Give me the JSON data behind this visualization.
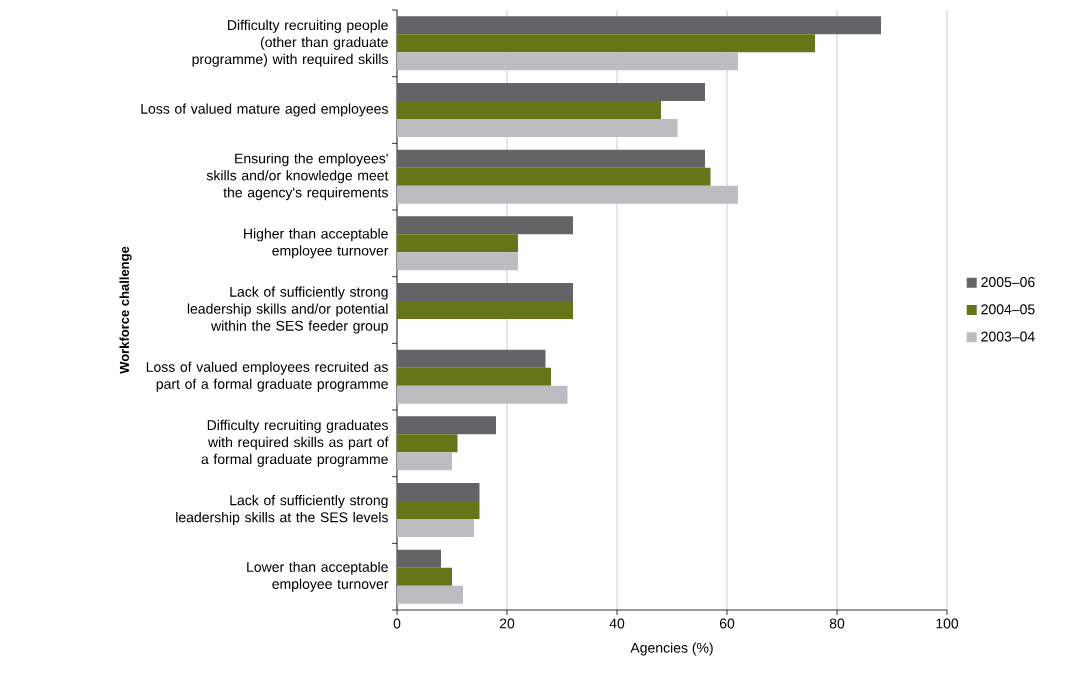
{
  "chart_data": {
    "type": "bar",
    "orientation": "horizontal",
    "xlabel": "Agencies (%)",
    "ylabel": "Workforce challenge",
    "categories": [
      "Difficulty recruiting people (other than graduate programme) with required skills",
      "Loss of valued mature aged employees",
      "Ensuring the employees' skills and/or knowledge meet the agency's requirements",
      "Higher than acceptable employee turnover",
      "Lack of sufficiently strong leadership skills and/or potential within the SES feeder group",
      "Loss of valued employees recruited as part of a formal graduate programme",
      "Difficulty recruiting graduates with required skills as part of a formal graduate programme",
      "Lack of sufficiently strong leadership skills at the SES levels",
      "Lower than acceptable employee turnover"
    ],
    "series": [
      {
        "name": "2005–06",
        "color": "#636466",
        "values": [
          88,
          56,
          56,
          32,
          32,
          27,
          18,
          15,
          8
        ]
      },
      {
        "name": "2004–05",
        "color": "#667518",
        "values": [
          76,
          48,
          57,
          22,
          32,
          28,
          11,
          15,
          10
        ]
      },
      {
        "name": "2003–04",
        "color": "#bcbdc0",
        "values": [
          62,
          51,
          62,
          22,
          null,
          31,
          10,
          14,
          12
        ]
      }
    ],
    "xlim": [
      0,
      100
    ],
    "xticks": [
      0,
      20,
      40,
      60,
      80,
      100
    ],
    "grid": "x",
    "legend": "right"
  }
}
